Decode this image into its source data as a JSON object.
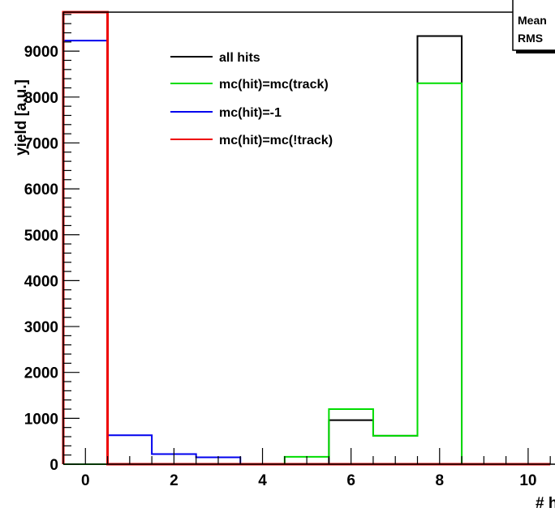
{
  "chart_data": {
    "type": "histogram",
    "ylabel": "yield [a.u.]",
    "xlabel_visible": "# h",
    "xlim": [
      -0.5,
      10.9
    ],
    "ylim": [
      0,
      9850
    ],
    "bin_edges": [
      -0.5,
      0.5,
      1.5,
      2.5,
      3.5,
      4.5,
      5.5,
      6.5,
      7.5,
      8.5,
      9.5,
      10.5
    ],
    "x_ticks": [
      0,
      2,
      4,
      6,
      8,
      10
    ],
    "y_ticks": [
      0,
      1000,
      2000,
      3000,
      4000,
      5000,
      6000,
      7000,
      8000,
      9000
    ],
    "y_tick_labels": [
      "0",
      "1000",
      "2000",
      "3000",
      "4000",
      "5000",
      "6000",
      "7000",
      "8000",
      "9000"
    ],
    "x_tick_labels": [
      "0",
      "2",
      "4",
      "6",
      "8",
      "10"
    ],
    "series": [
      {
        "name": "all hits",
        "color": "#000000",
        "values": [
          0,
          0,
          0,
          0,
          0,
          0,
          960,
          620,
          9330,
          0,
          0
        ]
      },
      {
        "name": "mc(hit)=mc(track)",
        "color": "#00dd00",
        "values": [
          0,
          0,
          0,
          0,
          0,
          160,
          1200,
          620,
          8300,
          0,
          0
        ]
      },
      {
        "name": "mc(hit)=-1",
        "color": "#0000ee",
        "values": [
          9230,
          630,
          220,
          150,
          0,
          0,
          0,
          0,
          0,
          0,
          0
        ]
      },
      {
        "name": "mc(hit)=mc(!track)",
        "color": "#ee0000",
        "values": [
          9850,
          0,
          0,
          0,
          0,
          0,
          0,
          0,
          0,
          0,
          0
        ]
      }
    ],
    "stats_box": {
      "labels": [
        "Mean",
        "RMS"
      ]
    }
  }
}
